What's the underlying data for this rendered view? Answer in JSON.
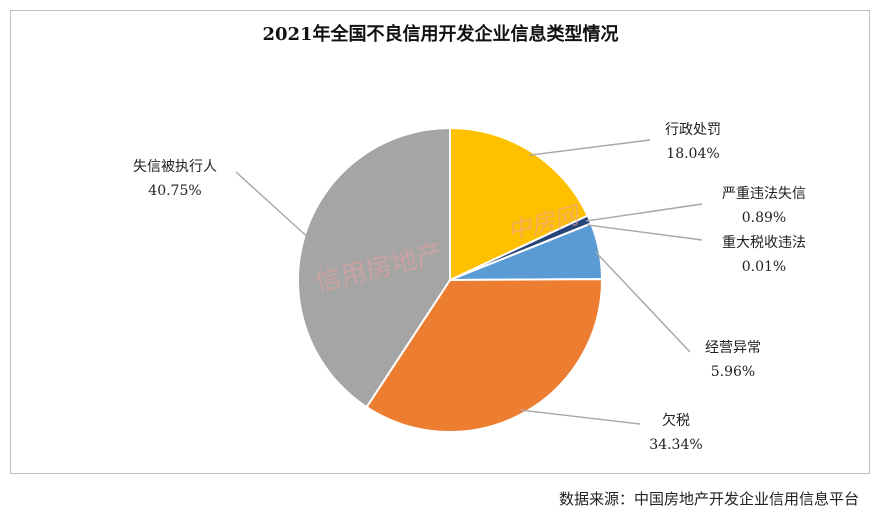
{
  "chart_data": {
    "type": "pie",
    "title": "2021年全国不良信用开发企业信息类型情况",
    "slices": [
      {
        "label": "行政处罚",
        "value": 18.04,
        "display": "18.04%",
        "color": "#FFC000"
      },
      {
        "label": "严重违法失信",
        "value": 0.89,
        "display": "0.89%",
        "color": "#264478"
      },
      {
        "label": "重大税收违法",
        "value": 0.01,
        "display": "0.01%",
        "color": "#1F3864"
      },
      {
        "label": "经营异常",
        "value": 5.96,
        "display": "5.96%",
        "color": "#5B9BD5"
      },
      {
        "label": "欠税",
        "value": 34.34,
        "display": "34.34%",
        "color": "#ED7D31"
      },
      {
        "label": "失信被执行人",
        "value": 40.75,
        "display": "40.75%",
        "color": "#A5A5A5"
      }
    ],
    "start_angle_deg": 0,
    "direction": "clockwise"
  },
  "watermark": {
    "left_text": "信用房地产",
    "right_text": "中房网",
    "color": "#E8A0A0"
  },
  "source": {
    "text": "数据来源：中国房地产开发企业信用信息平台"
  }
}
